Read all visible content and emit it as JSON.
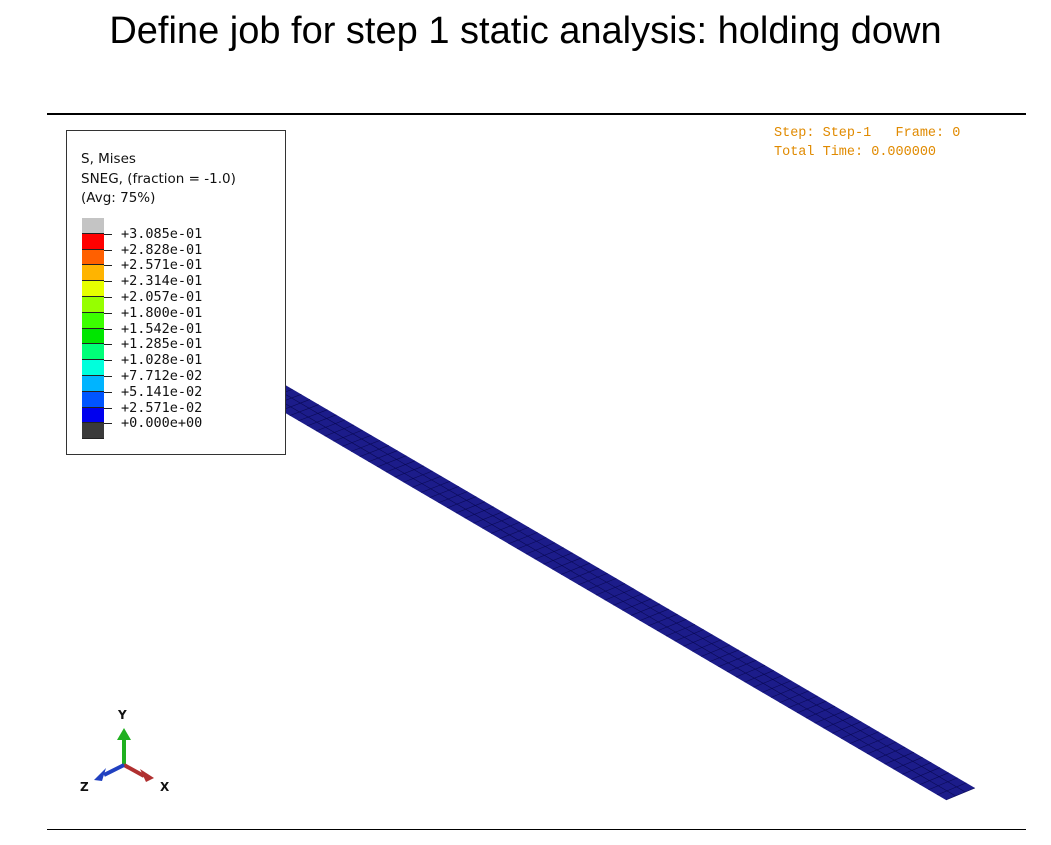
{
  "slide": {
    "title": "Define job for step 1 static analysis: holding down"
  },
  "legend": {
    "variable": "S, Mises",
    "option": "SNEG, (fraction = -1.0)",
    "averaging": "(Avg: 75%)",
    "values": [
      "+3.085e-01",
      "+2.828e-01",
      "+2.571e-01",
      "+2.314e-01",
      "+2.057e-01",
      "+1.800e-01",
      "+1.542e-01",
      "+1.285e-01",
      "+1.028e-01",
      "+7.712e-02",
      "+5.141e-02",
      "+2.571e-02",
      "+0.000e+00"
    ],
    "colors": [
      "#c4c4c4",
      "#ff0000",
      "#ff6000",
      "#ffb400",
      "#e6ff00",
      "#96ff00",
      "#3cff00",
      "#00e600",
      "#00ff78",
      "#00ffdc",
      "#00b4ff",
      "#0055ff",
      "#0000ee",
      "#3a3a3a"
    ]
  },
  "status": {
    "step_line": "Step: Step-1   Frame: 0",
    "time_line": "Total Time: 0.000000"
  },
  "model": {
    "color": "#1c1c8a",
    "mesh_color": "#0a0a55"
  },
  "triad": {
    "x_label": "X",
    "y_label": "Y",
    "z_label": "Z",
    "x_color": "#b03030",
    "y_color": "#20b020",
    "z_color": "#2040c0"
  }
}
